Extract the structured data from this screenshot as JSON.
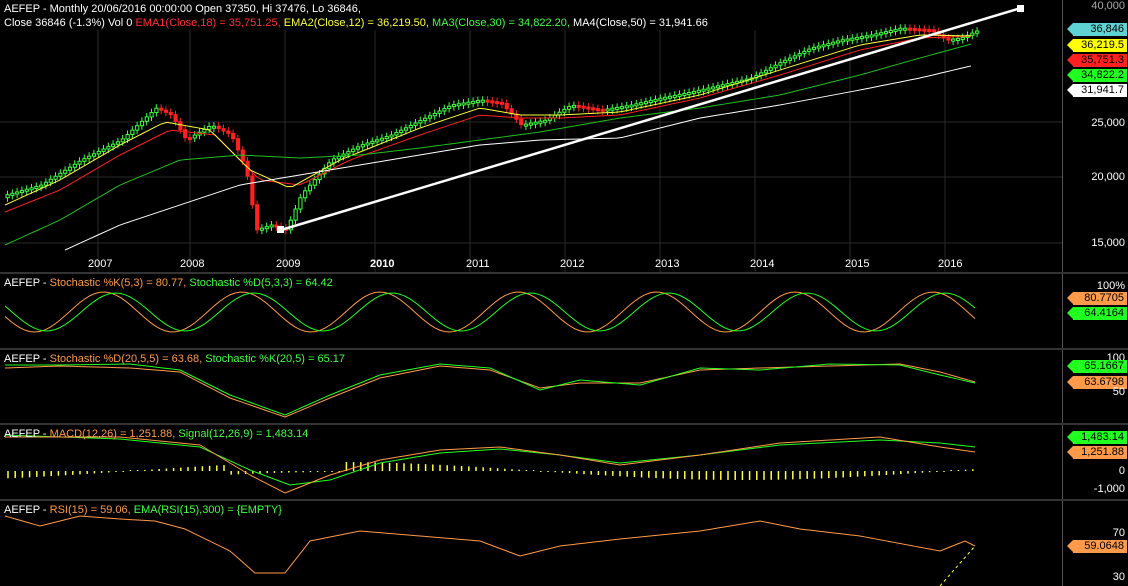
{
  "main": {
    "header_line1": "AEFEP - Monthly 20/06/2016 00:00:00 Open 37350, Hi 37476, Lo 36846,",
    "header_line2_prefix": "Close 36846 (-1.3%) Vol 0 ",
    "ema1_label": "EMA1(Close,18) = 35,751.25, ",
    "ema2_label": "EMA2(Close,12) = 36,219.50, ",
    "ma3_label": "MA3(Close,30) = 34,822.20, ",
    "ma4_label": "MA4(Close,50) = 31,941.66",
    "axis_ticks": [
      "25,000",
      "20,000",
      "15,000"
    ],
    "axis_top_label": "40,000",
    "tags": [
      {
        "text": "36,846",
        "bg": "#5fd3d3",
        "fg": "#000"
      },
      {
        "text": "36,219.5",
        "bg": "#ffff00",
        "fg": "#000"
      },
      {
        "text": "35,751.3",
        "bg": "#ff2020",
        "fg": "#000"
      },
      {
        "text": "34,822.2",
        "bg": "#20ff20",
        "fg": "#000"
      },
      {
        "text": "31,941.7",
        "bg": "#ffffff",
        "fg": "#000"
      }
    ],
    "years": [
      "2007",
      "2008",
      "2009",
      "2010",
      "2011",
      "2012",
      "2013",
      "2014",
      "2015",
      "2016"
    ]
  },
  "stoch1": {
    "label_prefix": "AEFEP - ",
    "k_label": "Stochastic %K(5,3) = 80.77, ",
    "d_label": "Stochastic %D(5,3,3) = 64.42",
    "axis_ticks": [
      "100%"
    ],
    "tags": [
      {
        "text": "80.7705",
        "bg": "#ff9a4a",
        "fg": "#000"
      },
      {
        "text": "64.4164",
        "bg": "#20ff20",
        "fg": "#000"
      }
    ]
  },
  "stoch2": {
    "label_prefix": "AEFEP - ",
    "d_label": "Stochastic %D(20,5,5) = 63.68, ",
    "k_label": "Stochastic %K(20,5) = 65.17",
    "axis_ticks": [
      "100",
      "50"
    ],
    "tags": [
      {
        "text": "65.1667",
        "bg": "#20ff20",
        "fg": "#000"
      },
      {
        "text": "63.6798",
        "bg": "#ff9a4a",
        "fg": "#000"
      }
    ]
  },
  "macd": {
    "label_prefix": "AEFEP - ",
    "macd_label": "MACD(12,26) = 1,251.88, ",
    "signal_label": "Signal(12,26,9) = 1,483.14",
    "axis_ticks": [
      "0",
      "-1,000"
    ],
    "tags": [
      {
        "text": "1,483.14",
        "bg": "#20ff20",
        "fg": "#000"
      },
      {
        "text": "1,251.88",
        "bg": "#ff9a4a",
        "fg": "#000"
      }
    ]
  },
  "rsi": {
    "label_prefix": "AEFEP - ",
    "rsi_label": "RSI(15) = 59.06, ",
    "ema_label": "EMA(RSI(15),300) = {EMPTY}",
    "axis_ticks": [
      "70",
      "30"
    ],
    "tags": [
      {
        "text": "59.0648",
        "bg": "#ff9a4a",
        "fg": "#000"
      }
    ]
  }
}
